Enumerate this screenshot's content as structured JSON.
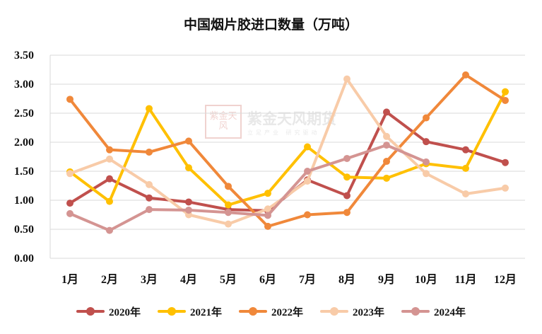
{
  "chart_data": {
    "type": "line",
    "title": "中国烟片胶进口数量（万吨）",
    "categories": [
      "1月",
      "2月",
      "3月",
      "4月",
      "5月",
      "6月",
      "7月",
      "8月",
      "9月",
      "10月",
      "11月",
      "12月"
    ],
    "ylim": [
      0,
      3.5
    ],
    "yticks": [
      "0.00",
      "0.50",
      "1.00",
      "1.50",
      "2.00",
      "2.50",
      "3.00",
      "3.50"
    ],
    "grid": true,
    "legend_position": "bottom",
    "series": [
      {
        "name": "2020年",
        "color": "#c0504d",
        "values": [
          0.95,
          1.37,
          1.04,
          0.97,
          0.84,
          0.82,
          1.35,
          1.08,
          2.52,
          2.01,
          1.87,
          1.65
        ]
      },
      {
        "name": "2021年",
        "color": "#ffc000",
        "values": [
          1.49,
          0.98,
          2.58,
          1.56,
          0.92,
          1.12,
          1.92,
          1.4,
          1.38,
          1.63,
          1.55,
          2.87
        ]
      },
      {
        "name": "2022年",
        "color": "#f0883a",
        "values": [
          2.74,
          1.87,
          1.83,
          2.02,
          1.24,
          0.55,
          0.75,
          0.79,
          1.67,
          2.42,
          3.16,
          2.72
        ]
      },
      {
        "name": "2023年",
        "color": "#f8cba8",
        "values": [
          1.46,
          1.71,
          1.27,
          0.75,
          0.59,
          0.85,
          1.33,
          3.09,
          2.1,
          1.46,
          1.11,
          1.21
        ]
      },
      {
        "name": "2024年",
        "color": "#d49492",
        "values": [
          0.77,
          0.48,
          0.84,
          0.83,
          0.79,
          0.74,
          1.5,
          1.72,
          1.95,
          1.66,
          null,
          null
        ]
      }
    ]
  },
  "watermark": {
    "seal": "紫金天风",
    "text": "紫金天风期货",
    "subtext": "立足产业 研究驱动"
  }
}
